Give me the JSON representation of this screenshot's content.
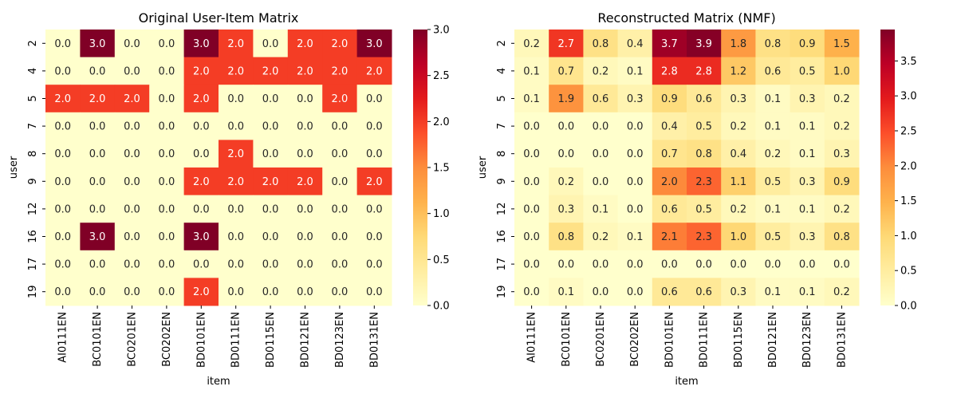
{
  "chart_data": [
    {
      "type": "heatmap",
      "title": "Original User-Item Matrix",
      "xlabel": "item",
      "ylabel": "user",
      "x": [
        "AI0111EN",
        "BC0101EN",
        "BC0201EN",
        "BC0202EN",
        "BD0101EN",
        "BD0111EN",
        "BD0115EN",
        "BD0121EN",
        "BD0123EN",
        "BD0131EN"
      ],
      "y": [
        "2",
        "4",
        "5",
        "7",
        "8",
        "9",
        "12",
        "16",
        "17",
        "19"
      ],
      "values": [
        [
          0,
          3,
          0,
          0,
          3,
          2,
          0,
          2,
          2,
          3
        ],
        [
          0,
          0,
          0,
          0,
          2,
          2,
          2,
          2,
          2,
          2
        ],
        [
          2,
          2,
          2,
          0,
          2,
          0,
          0,
          0,
          2,
          0
        ],
        [
          0,
          0,
          0,
          0,
          0,
          0,
          0,
          0,
          0,
          0
        ],
        [
          0,
          0,
          0,
          0,
          0,
          2,
          0,
          0,
          0,
          0
        ],
        [
          0,
          0,
          0,
          0,
          2,
          2,
          2,
          2,
          0,
          2
        ],
        [
          0,
          0,
          0,
          0,
          0,
          0,
          0,
          0,
          0,
          0
        ],
        [
          0,
          3,
          0,
          0,
          3,
          0,
          0,
          0,
          0,
          0
        ],
        [
          0,
          0,
          0,
          0,
          0,
          0,
          0,
          0,
          0,
          0
        ],
        [
          0,
          0,
          0,
          0,
          2,
          0,
          0,
          0,
          0,
          0
        ]
      ],
      "colormap": "YlOrRd",
      "vmin": 0,
      "vmax": 3,
      "colorbar_ticks": [
        "0.0",
        "0.5",
        "1.0",
        "1.5",
        "2.0",
        "2.5",
        "3.0"
      ]
    },
    {
      "type": "heatmap",
      "title": "Reconstructed Matrix (NMF)",
      "xlabel": "item",
      "ylabel": "user",
      "x": [
        "AI0111EN",
        "BC0101EN",
        "BC0201EN",
        "BC0202EN",
        "BD0101EN",
        "BD0111EN",
        "BD0115EN",
        "BD0121EN",
        "BD0123EN",
        "BD0131EN"
      ],
      "y": [
        "2",
        "4",
        "5",
        "7",
        "8",
        "9",
        "12",
        "16",
        "17",
        "19"
      ],
      "values": [
        [
          0.2,
          2.7,
          0.8,
          0.4,
          3.7,
          3.9,
          1.8,
          0.8,
          0.9,
          1.5
        ],
        [
          0.1,
          0.7,
          0.2,
          0.1,
          2.8,
          2.8,
          1.2,
          0.6,
          0.5,
          1.0
        ],
        [
          0.1,
          1.9,
          0.6,
          0.3,
          0.9,
          0.6,
          0.3,
          0.1,
          0.3,
          0.2
        ],
        [
          0.0,
          0.0,
          0.0,
          0.0,
          0.4,
          0.5,
          0.2,
          0.1,
          0.1,
          0.2
        ],
        [
          0.0,
          0.0,
          0.0,
          0.0,
          0.7,
          0.8,
          0.4,
          0.2,
          0.1,
          0.3
        ],
        [
          0.0,
          0.2,
          0.0,
          0.0,
          2.0,
          2.3,
          1.1,
          0.5,
          0.3,
          0.9
        ],
        [
          0.0,
          0.3,
          0.1,
          0.0,
          0.6,
          0.5,
          0.2,
          0.1,
          0.1,
          0.2
        ],
        [
          0.0,
          0.8,
          0.2,
          0.1,
          2.1,
          2.3,
          1.0,
          0.5,
          0.3,
          0.8
        ],
        [
          0.0,
          0.0,
          0.0,
          0.0,
          0.0,
          0.0,
          0.0,
          0.0,
          0.0,
          0.0
        ],
        [
          0.0,
          0.1,
          0.0,
          0.0,
          0.6,
          0.6,
          0.3,
          0.1,
          0.1,
          0.2
        ]
      ],
      "colormap": "YlOrRd",
      "vmin": 0,
      "vmax": 3.95,
      "colorbar_ticks": [
        "0.0",
        "0.5",
        "1.0",
        "1.5",
        "2.0",
        "2.5",
        "3.0",
        "3.5"
      ]
    }
  ]
}
